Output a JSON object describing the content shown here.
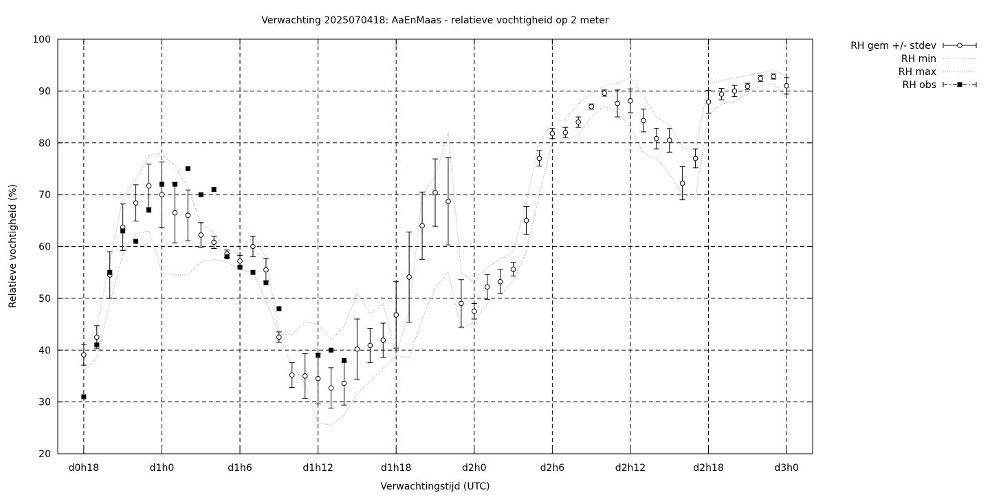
{
  "chart_data": {
    "type": "scatter",
    "title": "Verwachting 2025070418: AaEnMaas - relatieve vochtigheid op 2 meter",
    "xlabel": "Verwachtingstijd (UTC)",
    "ylabel": "Relatieve vochtigheid (%)",
    "ylim": [
      20,
      100
    ],
    "xlim_hours": [
      -2,
      56
    ],
    "yticks": [
      20,
      30,
      40,
      50,
      60,
      70,
      80,
      90,
      100
    ],
    "xticks": [
      {
        "h": 0,
        "label": "d0h18"
      },
      {
        "h": 6,
        "label": "d1h0"
      },
      {
        "h": 12,
        "label": "d1h6"
      },
      {
        "h": 18,
        "label": "d1h12"
      },
      {
        "h": 24,
        "label": "d1h18"
      },
      {
        "h": 30,
        "label": "d2h0"
      },
      {
        "h": 36,
        "label": "d2h6"
      },
      {
        "h": 42,
        "label": "d2h12"
      },
      {
        "h": 48,
        "label": "d2h18"
      },
      {
        "h": 54,
        "label": "d3h0"
      }
    ],
    "grid": true,
    "legend_position": "outside-top-right",
    "legend": [
      "RH gem +/- stdev",
      "RH min",
      "RH max",
      "RH obs"
    ],
    "series": [
      {
        "name": "RH gem +/- stdev",
        "style": "errorbars",
        "x": [
          0,
          1,
          2,
          3,
          4,
          5,
          6,
          7,
          8,
          9,
          10,
          11,
          12,
          13,
          14,
          15,
          16,
          17,
          18,
          19,
          20,
          21,
          22,
          23,
          24,
          25,
          26,
          27,
          28,
          29,
          30,
          31,
          32,
          33,
          34,
          35,
          36,
          37,
          38,
          39,
          40,
          41,
          42,
          43,
          44,
          45,
          46,
          47,
          48,
          49,
          50,
          51,
          52,
          53,
          54
        ],
        "mean": [
          39.1,
          42.5,
          54.5,
          63.7,
          68.4,
          71.7,
          70.0,
          66.5,
          66.0,
          62.2,
          60.8,
          58.6,
          57.2,
          60.0,
          55.5,
          42.5,
          35.2,
          35.0,
          34.5,
          32.7,
          33.6,
          40.2,
          40.9,
          41.9,
          46.8,
          54.1,
          64.0,
          70.4,
          68.7,
          49.0,
          47.5,
          52.2,
          53.2,
          55.6,
          65.0,
          77.0,
          81.8,
          82.0,
          84.0,
          87.0,
          89.6,
          87.6,
          88.1,
          84.3,
          80.8,
          80.5,
          72.2,
          77.0,
          87.9,
          89.4,
          90.0,
          90.9,
          92.4,
          92.8,
          91.0
        ],
        "stdev": [
          2.0,
          2.2,
          4.5,
          4.5,
          3.5,
          4.2,
          6.3,
          5.8,
          4.9,
          2.4,
          1.2,
          0.7,
          1.1,
          2.0,
          2.2,
          1.0,
          2.4,
          4.3,
          4.9,
          3.9,
          4.2,
          5.8,
          3.3,
          3.3,
          6.4,
          8.7,
          6.5,
          6.5,
          8.4,
          4.6,
          1.5,
          2.4,
          2.3,
          1.3,
          2.7,
          1.5,
          1.0,
          1.0,
          1.0,
          0.5,
          0.6,
          2.6,
          2.3,
          2.2,
          2.0,
          2.3,
          3.2,
          1.8,
          2.2,
          1.1,
          1.1,
          0.6,
          0.6,
          0.5,
          1.6
        ]
      },
      {
        "name": "RH min",
        "style": "dotted-line",
        "x": [
          0,
          1,
          2,
          3,
          4,
          5,
          6,
          7,
          8,
          9,
          10,
          11,
          12,
          13,
          14,
          15,
          16,
          17,
          18,
          19,
          20,
          21,
          22,
          23,
          24,
          25,
          26,
          27,
          28,
          29,
          30,
          31,
          32,
          33,
          34,
          35,
          36,
          37,
          38,
          39,
          40,
          41,
          42,
          43,
          44,
          45,
          46,
          47,
          48,
          49,
          50,
          51,
          52,
          53,
          54
        ],
        "values": [
          36.0,
          38.5,
          49.0,
          58.5,
          62.5,
          63.0,
          55.0,
          54.5,
          54.5,
          57.0,
          57.5,
          57.0,
          55.5,
          55.0,
          49.5,
          43.0,
          43.0,
          45.5,
          45.0,
          42.0,
          44.5,
          51.0,
          47.0,
          49.0,
          39.0,
          38.5,
          46.0,
          52.0,
          55.0,
          44.0,
          45.5,
          49.0,
          50.5,
          53.5,
          59.0,
          70.0,
          80.0,
          80.5,
          81.5,
          85.0,
          87.0,
          86.0,
          83.0,
          78.0,
          77.0,
          74.0,
          70.0,
          69.5,
          85.5,
          87.5,
          88.0,
          89.5,
          91.0,
          91.5,
          88.5
        ]
      },
      {
        "name": "RH max",
        "style": "dotted-line",
        "x": [
          0,
          1,
          2,
          3,
          4,
          5,
          6,
          7,
          8,
          9,
          10,
          11,
          12,
          13,
          14,
          15,
          16,
          17,
          18,
          19,
          20,
          21,
          22,
          23,
          24,
          25,
          26,
          27,
          28,
          29,
          30,
          31,
          32,
          33,
          34,
          35,
          36,
          37,
          38,
          39,
          40,
          41,
          42,
          43,
          44,
          45,
          46,
          47,
          48,
          49,
          50,
          51,
          52,
          53,
          54
        ],
        "values": [
          40.0,
          44.5,
          57.0,
          69.5,
          73.0,
          77.5,
          78.0,
          75.5,
          71.5,
          64.5,
          62.5,
          59.5,
          58.5,
          62.0,
          58.0,
          43.0,
          37.0,
          33.5,
          26.0,
          25.5,
          27.5,
          31.5,
          34.0,
          36.5,
          39.0,
          47.5,
          70.0,
          73.5,
          82.0,
          55.0,
          53.0,
          56.0,
          57.5,
          59.0,
          68.5,
          80.0,
          84.0,
          84.5,
          87.5,
          89.5,
          91.0,
          91.5,
          92.5,
          89.0,
          85.0,
          83.5,
          79.0,
          78.5,
          91.5,
          92.0,
          92.5,
          93.0,
          93.5,
          94.0,
          93.0
        ]
      },
      {
        "name": "RH obs",
        "style": "filled-squares",
        "x": [
          0,
          1,
          2,
          3,
          4,
          5,
          6,
          7,
          8,
          9,
          10,
          11,
          12,
          13,
          14,
          15,
          18,
          19,
          20
        ],
        "values": [
          31,
          41,
          55,
          63,
          61,
          67,
          72,
          72,
          75,
          70,
          71,
          58,
          56,
          55,
          53,
          48,
          39,
          40,
          38
        ]
      }
    ]
  }
}
